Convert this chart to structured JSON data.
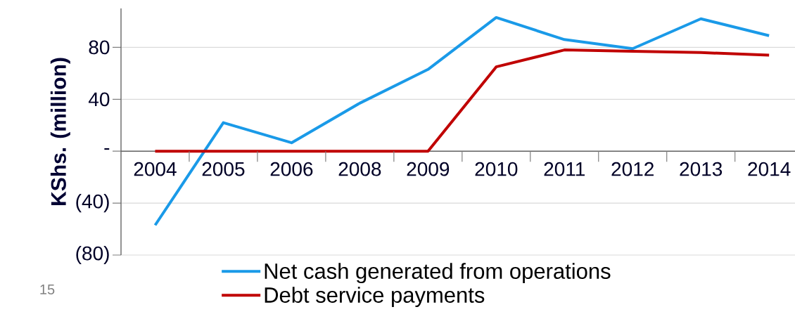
{
  "chart_data": {
    "type": "line",
    "ylabel": "KShs. (million)",
    "categories": [
      "2004",
      "2005",
      "2006",
      "2008",
      "2009",
      "2010",
      "2011",
      "2012",
      "2013",
      "2014"
    ],
    "series": [
      {
        "name": "Net cash generated from operations",
        "color": "#1a9ae8",
        "values": [
          -57,
          22,
          6.5,
          37,
          63,
          103,
          86,
          79,
          102,
          89
        ]
      },
      {
        "name": "Debt service payments",
        "color": "#c00000",
        "values": [
          0,
          0,
          0,
          0,
          0,
          65,
          78,
          77,
          76,
          74
        ]
      }
    ],
    "ylim": [
      -80,
      110
    ],
    "yticks": [
      {
        "value": -80,
        "label": "(80)"
      },
      {
        "value": -40,
        "label": "(40)"
      },
      {
        "value": 0,
        "label": "-"
      },
      40,
      80
    ],
    "grid": "y",
    "legend": "bottom",
    "line_style": "solid",
    "marker": "none",
    "annotations": [
      "15"
    ]
  }
}
